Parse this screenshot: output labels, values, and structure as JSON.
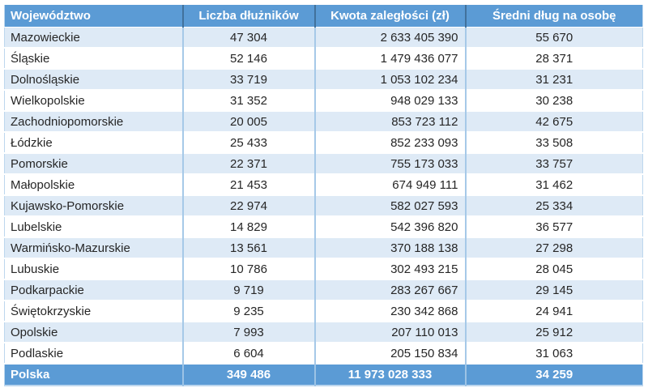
{
  "colors": {
    "header_bg": "#5B9BD5",
    "header_text": "#FFFFFF",
    "header_divider": "#41719C",
    "footer_divider": "#9CC3E5",
    "row_bg": "#FFFFFF",
    "row_alt_bg": "#DEEAF6",
    "body_divider": "#A6C9E8",
    "outer_border": "#BDD7EE",
    "body_text": "#262626"
  },
  "chart_data": {
    "type": "table",
    "columns": [
      "Województwo",
      "Liczba dłużników",
      "Kwota zaległości (zł)",
      "Średni dług na osobę"
    ],
    "rows": [
      [
        "Mazowieckie",
        "47 304",
        "2 633 405 390",
        "55 670"
      ],
      [
        "Śląskie",
        "52 146",
        "1 479 436 077",
        "28 371"
      ],
      [
        "Dolnośląskie",
        "33 719",
        "1 053 102 234",
        "31 231"
      ],
      [
        "Wielkopolskie",
        "31 352",
        "948 029 133",
        "30 238"
      ],
      [
        "Zachodniopomorskie",
        "20 005",
        "853 723 112",
        "42 675"
      ],
      [
        "Łódzkie",
        "25 433",
        "852 233 093",
        "33 508"
      ],
      [
        "Pomorskie",
        "22 371",
        "755 173 033",
        "33 757"
      ],
      [
        "Małopolskie",
        "21 453",
        "674 949 111",
        "31 462"
      ],
      [
        "Kujawsko-Pomorskie",
        "22 974",
        "582 027 593",
        "25 334"
      ],
      [
        "Lubelskie",
        "14 829",
        "542 396 820",
        "36 577"
      ],
      [
        "Warmińsko-Mazurskie",
        "13 561",
        "370 188 138",
        "27 298"
      ],
      [
        "Lubuskie",
        "10 786",
        "302 493 215",
        "28 045"
      ],
      [
        "Podkarpackie",
        "9 719",
        "283 267 667",
        "29 145"
      ],
      [
        "Świętokrzyskie",
        "9 235",
        "230 342 868",
        "24 941"
      ],
      [
        "Opolskie",
        "7 993",
        "207 110 013",
        "25 912"
      ],
      [
        "Podlaskie",
        "6 604",
        "205 150 834",
        "31 063"
      ]
    ],
    "footer": [
      "Polska",
      "349 486",
      "11 973 028 333",
      "34 259"
    ]
  }
}
